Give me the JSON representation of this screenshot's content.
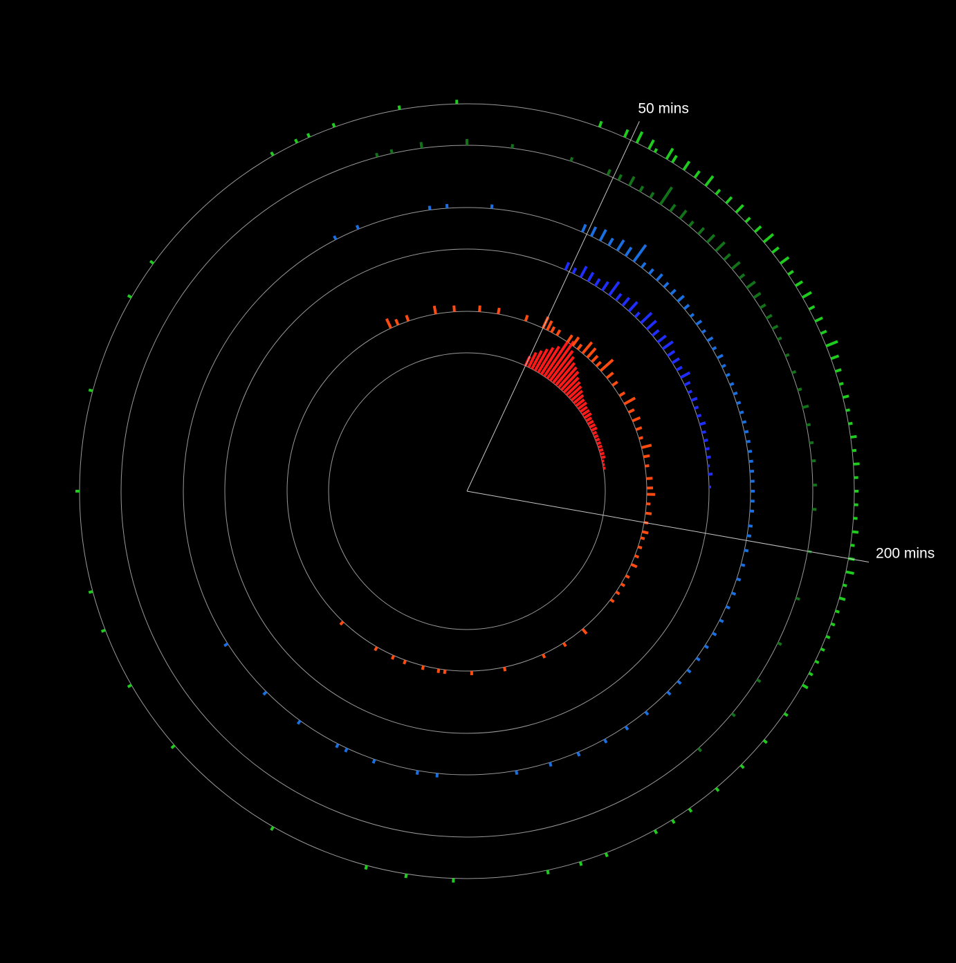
{
  "chart_data": {
    "type": "radial-bar",
    "title": "",
    "angle_unit": "minutes",
    "full_circle_minutes": 720,
    "grid": true,
    "reference_lines": [
      {
        "minutes": 50,
        "label": "50 mins"
      },
      {
        "minutes": 200,
        "label": "200 mins"
      }
    ],
    "tracks": [
      {
        "color": "#ff1a1a",
        "bins": [
          [
            50,
            5
          ],
          [
            53,
            8
          ],
          [
            56,
            10
          ],
          [
            59,
            12
          ],
          [
            62,
            14
          ],
          [
            65,
            16
          ],
          [
            68,
            20
          ],
          [
            71,
            22
          ],
          [
            74,
            18
          ],
          [
            77,
            16
          ],
          [
            80,
            14
          ],
          [
            83,
            13
          ],
          [
            86,
            12
          ],
          [
            89,
            10
          ],
          [
            92,
            9
          ],
          [
            95,
            8
          ],
          [
            98,
            7
          ],
          [
            101,
            6
          ],
          [
            104,
            5
          ],
          [
            107,
            5
          ],
          [
            110,
            4
          ],
          [
            113,
            4
          ],
          [
            116,
            4
          ],
          [
            119,
            3
          ],
          [
            122,
            3
          ],
          [
            125,
            3
          ],
          [
            128,
            3
          ],
          [
            131,
            2
          ],
          [
            134,
            2
          ],
          [
            137,
            2
          ],
          [
            140,
            2
          ],
          [
            143,
            2
          ],
          [
            146,
            2
          ],
          [
            149,
            2
          ],
          [
            152,
            2
          ],
          [
            155,
            1
          ],
          [
            158,
            1
          ],
          [
            161,
            1
          ]
        ]
      },
      {
        "color": "#ff4a10",
        "bins": [
          [
            -50,
            5
          ],
          [
            -45,
            3
          ],
          [
            -38,
            3
          ],
          [
            -20,
            4
          ],
          [
            -8,
            3
          ],
          [
            8,
            3
          ],
          [
            20,
            3
          ],
          [
            38,
            3
          ],
          [
            50,
            6
          ],
          [
            53,
            5
          ],
          [
            56,
            3
          ],
          [
            60,
            3
          ],
          [
            68,
            4
          ],
          [
            72,
            5
          ],
          [
            76,
            3
          ],
          [
            80,
            7
          ],
          [
            84,
            6
          ],
          [
            88,
            4
          ],
          [
            92,
            3
          ],
          [
            96,
            8
          ],
          [
            102,
            4
          ],
          [
            108,
            3
          ],
          [
            116,
            3
          ],
          [
            122,
            6
          ],
          [
            128,
            3
          ],
          [
            134,
            4
          ],
          [
            140,
            3
          ],
          [
            146,
            2
          ],
          [
            152,
            5
          ],
          [
            158,
            3
          ],
          [
            164,
            2
          ],
          [
            172,
            3
          ],
          [
            178,
            3
          ],
          [
            182,
            4
          ],
          [
            188,
            2
          ],
          [
            194,
            3
          ],
          [
            200,
            2
          ],
          [
            206,
            3
          ],
          [
            210,
            2
          ],
          [
            216,
            2
          ],
          [
            222,
            2
          ],
          [
            228,
            3
          ],
          [
            236,
            2
          ],
          [
            242,
            2
          ],
          [
            248,
            2
          ],
          [
            254,
            2
          ],
          [
            280,
            3
          ],
          [
            295,
            2
          ],
          [
            310,
            2
          ],
          [
            336,
            2
          ],
          [
            357,
            2
          ],
          [
            374,
            2
          ],
          [
            378,
            2
          ],
          [
            388,
            2
          ],
          [
            400,
            2
          ],
          [
            408,
            2
          ],
          [
            420,
            2
          ],
          [
            447,
            2
          ]
        ]
      },
      {
        "color": "#1f2dff",
        "bins": [
          [
            48,
            4
          ],
          [
            52,
            3
          ],
          [
            56,
            6
          ],
          [
            60,
            5
          ],
          [
            64,
            4
          ],
          [
            68,
            5
          ],
          [
            72,
            8
          ],
          [
            76,
            4
          ],
          [
            80,
            5
          ],
          [
            84,
            6
          ],
          [
            88,
            3
          ],
          [
            92,
            7
          ],
          [
            96,
            6
          ],
          [
            100,
            4
          ],
          [
            104,
            5
          ],
          [
            108,
            6
          ],
          [
            112,
            4
          ],
          [
            116,
            4
          ],
          [
            120,
            3
          ],
          [
            124,
            5
          ],
          [
            128,
            3
          ],
          [
            132,
            2
          ],
          [
            136,
            3
          ],
          [
            140,
            2
          ],
          [
            144,
            2
          ],
          [
            148,
            3
          ],
          [
            152,
            2
          ],
          [
            156,
            2
          ],
          [
            160,
            2
          ],
          [
            164,
            2
          ],
          [
            168,
            1
          ],
          [
            172,
            2
          ],
          [
            178,
            1
          ]
        ]
      },
      {
        "color": "#1a6fe0",
        "bins": [
          [
            -55,
            2
          ],
          [
            -45,
            2
          ],
          [
            -15,
            2
          ],
          [
            -8,
            2
          ],
          [
            10,
            2
          ],
          [
            48,
            4
          ],
          [
            52,
            5
          ],
          [
            56,
            6
          ],
          [
            60,
            4
          ],
          [
            64,
            6
          ],
          [
            68,
            5
          ],
          [
            72,
            10
          ],
          [
            76,
            3
          ],
          [
            80,
            3
          ],
          [
            84,
            4
          ],
          [
            88,
            3
          ],
          [
            92,
            3
          ],
          [
            96,
            4
          ],
          [
            100,
            3
          ],
          [
            104,
            2
          ],
          [
            108,
            3
          ],
          [
            112,
            2
          ],
          [
            116,
            3
          ],
          [
            120,
            2
          ],
          [
            124,
            3
          ],
          [
            128,
            2
          ],
          [
            132,
            2
          ],
          [
            136,
            2
          ],
          [
            140,
            2
          ],
          [
            144,
            2
          ],
          [
            148,
            2
          ],
          [
            152,
            2
          ],
          [
            156,
            2
          ],
          [
            160,
            2
          ],
          [
            164,
            2
          ],
          [
            168,
            2
          ],
          [
            172,
            2
          ],
          [
            176,
            2
          ],
          [
            180,
            2
          ],
          [
            184,
            2
          ],
          [
            188,
            2
          ],
          [
            194,
            2
          ],
          [
            198,
            2
          ],
          [
            204,
            2
          ],
          [
            210,
            2
          ],
          [
            216,
            2
          ],
          [
            222,
            2
          ],
          [
            228,
            2
          ],
          [
            234,
            2
          ],
          [
            240,
            2
          ],
          [
            246,
            2
          ],
          [
            252,
            2
          ],
          [
            258,
            2
          ],
          [
            264,
            2
          ],
          [
            270,
            2
          ],
          [
            282,
            2
          ],
          [
            292,
            2
          ],
          [
            302,
            2
          ],
          [
            314,
            2
          ],
          [
            326,
            2
          ],
          [
            340,
            2
          ],
          [
            372,
            2
          ],
          [
            380,
            2
          ],
          [
            398,
            2
          ],
          [
            410,
            2
          ],
          [
            414,
            2
          ],
          [
            432,
            2
          ],
          [
            450,
            2
          ],
          [
            475,
            2
          ]
        ]
      },
      {
        "color": "#12721a",
        "bins": [
          [
            -30,
            2
          ],
          [
            -25,
            2
          ],
          [
            -15,
            3
          ],
          [
            0,
            3
          ],
          [
            15,
            2
          ],
          [
            35,
            2
          ],
          [
            48,
            3
          ],
          [
            52,
            3
          ],
          [
            56,
            5
          ],
          [
            60,
            3
          ],
          [
            64,
            3
          ],
          [
            68,
            10
          ],
          [
            72,
            4
          ],
          [
            76,
            5
          ],
          [
            80,
            3
          ],
          [
            84,
            4
          ],
          [
            88,
            5
          ],
          [
            92,
            6
          ],
          [
            96,
            4
          ],
          [
            100,
            5
          ],
          [
            104,
            3
          ],
          [
            108,
            5
          ],
          [
            112,
            4
          ],
          [
            116,
            3
          ],
          [
            120,
            3
          ],
          [
            124,
            3
          ],
          [
            128,
            2
          ],
          [
            134,
            2
          ],
          [
            140,
            2
          ],
          [
            146,
            2
          ],
          [
            152,
            3
          ],
          [
            158,
            2
          ],
          [
            164,
            2
          ],
          [
            170,
            2
          ],
          [
            178,
            2
          ],
          [
            186,
            2
          ],
          [
            200,
            2
          ],
          [
            216,
            2
          ],
          [
            232,
            2
          ],
          [
            246,
            2
          ],
          [
            260,
            2
          ],
          [
            276,
            2
          ]
        ]
      },
      {
        "color": "#1ecb1e",
        "bins": [
          [
            -240,
            2
          ],
          [
            -210,
            2
          ],
          [
            -180,
            2
          ],
          [
            -150,
            2
          ],
          [
            -120,
            2
          ],
          [
            -108,
            2
          ],
          [
            -60,
            2
          ],
          [
            -52,
            2
          ],
          [
            -48,
            2
          ],
          [
            -40,
            2
          ],
          [
            -20,
            2
          ],
          [
            -3,
            2
          ],
          [
            40,
            3
          ],
          [
            48,
            4
          ],
          [
            52,
            6
          ],
          [
            56,
            5
          ],
          [
            58,
            2
          ],
          [
            62,
            6
          ],
          [
            64,
            4
          ],
          [
            68,
            5
          ],
          [
            72,
            4
          ],
          [
            76,
            6
          ],
          [
            80,
            3
          ],
          [
            84,
            4
          ],
          [
            88,
            5
          ],
          [
            92,
            3
          ],
          [
            96,
            4
          ],
          [
            100,
            6
          ],
          [
            104,
            4
          ],
          [
            108,
            5
          ],
          [
            112,
            3
          ],
          [
            116,
            4
          ],
          [
            120,
            5
          ],
          [
            124,
            3
          ],
          [
            128,
            4
          ],
          [
            132,
            3
          ],
          [
            136,
            6
          ],
          [
            140,
            4
          ],
          [
            144,
            3
          ],
          [
            148,
            2
          ],
          [
            152,
            3
          ],
          [
            156,
            2
          ],
          [
            160,
            2
          ],
          [
            164,
            3
          ],
          [
            168,
            2
          ],
          [
            172,
            3
          ],
          [
            176,
            2
          ],
          [
            180,
            2
          ],
          [
            184,
            2
          ],
          [
            188,
            2
          ],
          [
            192,
            3
          ],
          [
            196,
            2
          ],
          [
            200,
            3
          ],
          [
            204,
            4
          ],
          [
            208,
            2
          ],
          [
            212,
            3
          ],
          [
            216,
            2
          ],
          [
            220,
            2
          ],
          [
            224,
            2
          ],
          [
            228,
            2
          ],
          [
            232,
            2
          ],
          [
            236,
            2
          ],
          [
            240,
            3
          ],
          [
            250,
            2
          ],
          [
            260,
            2
          ],
          [
            270,
            2
          ],
          [
            280,
            2
          ],
          [
            290,
            2
          ],
          [
            296,
            2
          ],
          [
            302,
            2
          ],
          [
            318,
            2
          ],
          [
            326,
            2
          ],
          [
            336,
            2
          ],
          [
            364,
            2
          ],
          [
            378,
            2
          ],
          [
            390,
            2
          ],
          [
            420,
            2
          ],
          [
            458,
            2
          ],
          [
            498,
            2
          ]
        ]
      }
    ]
  }
}
